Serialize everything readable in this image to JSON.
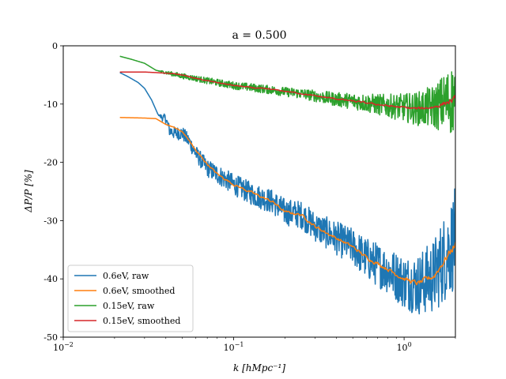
{
  "chart_data": {
    "type": "line",
    "title": "a = 0.500",
    "xlabel": "k [hMpc⁻¹]",
    "ylabel": "ΔP/P [%]",
    "xscale": "log",
    "xlim": [
      0.01,
      2.0
    ],
    "ylim": [
      -50,
      0
    ],
    "grid": false,
    "legend_position": "lower-left",
    "x_ticks": [
      {
        "value": 0.01,
        "base": "10",
        "exp": "−2"
      },
      {
        "value": 0.1,
        "base": "10",
        "exp": "−1"
      },
      {
        "value": 1,
        "base": "10",
        "exp": "0"
      }
    ],
    "y_ticks": [
      {
        "value": 0,
        "label": "0"
      },
      {
        "value": -10,
        "label": "-10"
      },
      {
        "value": -20,
        "label": "-20"
      },
      {
        "value": -30,
        "label": "-30"
      },
      {
        "value": -40,
        "label": "-40"
      },
      {
        "value": -50,
        "label": "-50"
      }
    ],
    "series": [
      {
        "name": "0.6eV, raw",
        "color": "#1f77b4",
        "style": "noisy",
        "x": [
          0.0215,
          0.024,
          0.0275,
          0.03,
          0.033,
          0.036,
          0.038,
          0.04,
          0.042,
          0.045,
          0.05,
          0.055,
          0.06,
          0.07,
          0.08,
          0.1,
          0.13,
          0.17,
          0.2,
          0.25,
          0.3,
          0.4,
          0.5,
          0.6,
          0.8,
          1.0,
          1.2,
          1.5,
          2.0
        ],
        "y": [
          -4.6,
          -5.3,
          -6.3,
          -7.3,
          -9.3,
          -11.8,
          -12.3,
          -12.5,
          -14.5,
          -15.0,
          -15.0,
          -16.5,
          -18.5,
          -21.0,
          -22.0,
          -23.8,
          -25.5,
          -26.8,
          -28.5,
          -29.0,
          -31.0,
          -33.0,
          -34.5,
          -36.5,
          -38.5,
          -40.5,
          -41.0,
          -39.5,
          -33.0
        ],
        "noise_amplitude": [
          0,
          0,
          0,
          0,
          0,
          0,
          0.6,
          0.8,
          1.0,
          1.1,
          1.2,
          1.3,
          1.4,
          1.5,
          1.7,
          1.8,
          2.0,
          2.1,
          2.3,
          2.4,
          2.6,
          2.9,
          3.2,
          3.6,
          4.0,
          4.6,
          5.3,
          6.5,
          8.8
        ]
      },
      {
        "name": "0.6eV, smoothed",
        "color": "#ff7f0e",
        "style": "smooth",
        "x": [
          0.0215,
          0.03,
          0.035,
          0.04,
          0.045,
          0.05,
          0.055,
          0.06,
          0.07,
          0.08,
          0.1,
          0.13,
          0.17,
          0.2,
          0.25,
          0.3,
          0.4,
          0.5,
          0.6,
          0.8,
          1.0,
          1.2,
          1.5,
          2.0
        ],
        "y": [
          -12.3,
          -12.4,
          -12.5,
          -13.5,
          -14.0,
          -14.8,
          -16.3,
          -18.0,
          -20.3,
          -22.0,
          -23.8,
          -25.3,
          -26.8,
          -28.5,
          -29.0,
          -31.0,
          -33.0,
          -34.5,
          -36.3,
          -38.3,
          -40.0,
          -40.8,
          -39.5,
          -34.0
        ],
        "noise_amplitude": [
          0,
          0,
          0,
          0,
          0.1,
          0.2,
          0.2,
          0.3,
          0.3,
          0.35,
          0.35,
          0.4,
          0.4,
          0.4,
          0.4,
          0.5,
          0.5,
          0.5,
          0.6,
          0.6,
          0.7,
          0.8,
          1.0,
          1.5
        ]
      },
      {
        "name": "0.15eV, raw",
        "color": "#2ca02c",
        "style": "noisy",
        "x": [
          0.0215,
          0.025,
          0.03,
          0.035,
          0.04,
          0.045,
          0.05,
          0.06,
          0.07,
          0.08,
          0.1,
          0.13,
          0.17,
          0.2,
          0.25,
          0.3,
          0.4,
          0.5,
          0.6,
          0.8,
          1.0,
          1.2,
          1.5,
          2.0
        ],
        "y": [
          -1.8,
          -2.3,
          -3.0,
          -4.2,
          -4.6,
          -4.9,
          -5.2,
          -5.6,
          -6.0,
          -6.3,
          -6.8,
          -7.2,
          -7.6,
          -7.9,
          -8.2,
          -8.6,
          -9.2,
          -9.5,
          -9.8,
          -10.3,
          -10.6,
          -10.8,
          -10.5,
          -9.0
        ],
        "noise_amplitude": [
          0,
          0,
          0,
          0,
          0.3,
          0.4,
          0.45,
          0.5,
          0.55,
          0.6,
          0.65,
          0.7,
          0.75,
          0.8,
          0.9,
          1.0,
          1.2,
          1.4,
          1.6,
          2.0,
          2.4,
          2.9,
          3.8,
          6.5
        ]
      },
      {
        "name": "0.15eV, smoothed",
        "color": "#d62728",
        "style": "smooth",
        "x": [
          0.0215,
          0.03,
          0.035,
          0.04,
          0.045,
          0.05,
          0.06,
          0.07,
          0.08,
          0.1,
          0.13,
          0.17,
          0.2,
          0.25,
          0.3,
          0.4,
          0.5,
          0.6,
          0.8,
          1.0,
          1.2,
          1.5,
          2.0
        ],
        "y": [
          -4.5,
          -4.5,
          -4.6,
          -4.7,
          -4.8,
          -5.0,
          -5.6,
          -6.0,
          -6.3,
          -6.8,
          -7.2,
          -7.5,
          -7.8,
          -8.2,
          -8.6,
          -9.1,
          -9.5,
          -9.8,
          -10.3,
          -10.6,
          -10.8,
          -10.5,
          -9.2
        ],
        "noise_amplitude": [
          0,
          0,
          0,
          0,
          0.05,
          0.1,
          0.1,
          0.12,
          0.12,
          0.15,
          0.15,
          0.15,
          0.2,
          0.2,
          0.2,
          0.25,
          0.25,
          0.3,
          0.3,
          0.35,
          0.45,
          0.6,
          1.0
        ]
      }
    ]
  }
}
